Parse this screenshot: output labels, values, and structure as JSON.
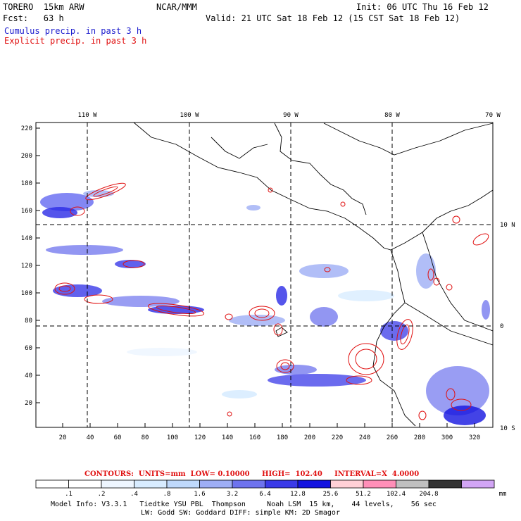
{
  "header": {
    "model": "TORERO  15km ARW",
    "org": "NCAR/MMM",
    "init": "Init: 06 UTC Thu 16 Feb 12",
    "fcst": "Fcst:   63 h",
    "valid": "Valid: 21 UTC Sat 18 Feb 12 (15 CST Sat 18 Feb 12)",
    "line_cumulus": "Cumulus precip. in past 3 h",
    "line_explicit": "Explicit precip. in past 3 h"
  },
  "axes": {
    "top_lon_labels": [
      "110 W",
      "100 W",
      "90 W",
      "80 W",
      "70 W"
    ],
    "right_lat_labels": [
      "10 N",
      "0",
      "10 S"
    ],
    "left_ticks": [
      "220",
      "200",
      "180",
      "160",
      "140",
      "120",
      "100",
      "80",
      "60",
      "40",
      "20"
    ],
    "bottom_ticks": [
      "20",
      "40",
      "60",
      "80",
      "100",
      "120",
      "140",
      "160",
      "180",
      "200",
      "220",
      "240",
      "260",
      "280",
      "300",
      "320"
    ]
  },
  "contour_info": "CONTOURS:  UNITS=mm  LOW= 0.10000     HIGH=  102.40     INTERVAL=X  4.0000",
  "colorbar": {
    "labels": [
      ".1",
      ".2",
      ".4",
      ".8",
      "1.6",
      "3.2",
      "6.4",
      "12.8",
      "25.6",
      "51.2",
      "102.4",
      "204.8"
    ],
    "unit": "mm",
    "colors": [
      "#ffffff",
      "#ffffff",
      "#eef6ff",
      "#d8ecff",
      "#bfd9fb",
      "#9eaef5",
      "#6e73ee",
      "#3a3ae8",
      "#1414e0",
      "#ffd0d6",
      "#ff8fb8",
      "#c0c0c0",
      "#333333",
      "#d2a5f5"
    ]
  },
  "footer": {
    "line1": "Model Info: V3.3.1   Tiedtke YSU PBL  Thompson     Noah LSM  15 km,    44 levels,    56 sec",
    "line2": "LW: Godd SW: Goddard DIFF: simple KM: 2D Smagor"
  }
}
